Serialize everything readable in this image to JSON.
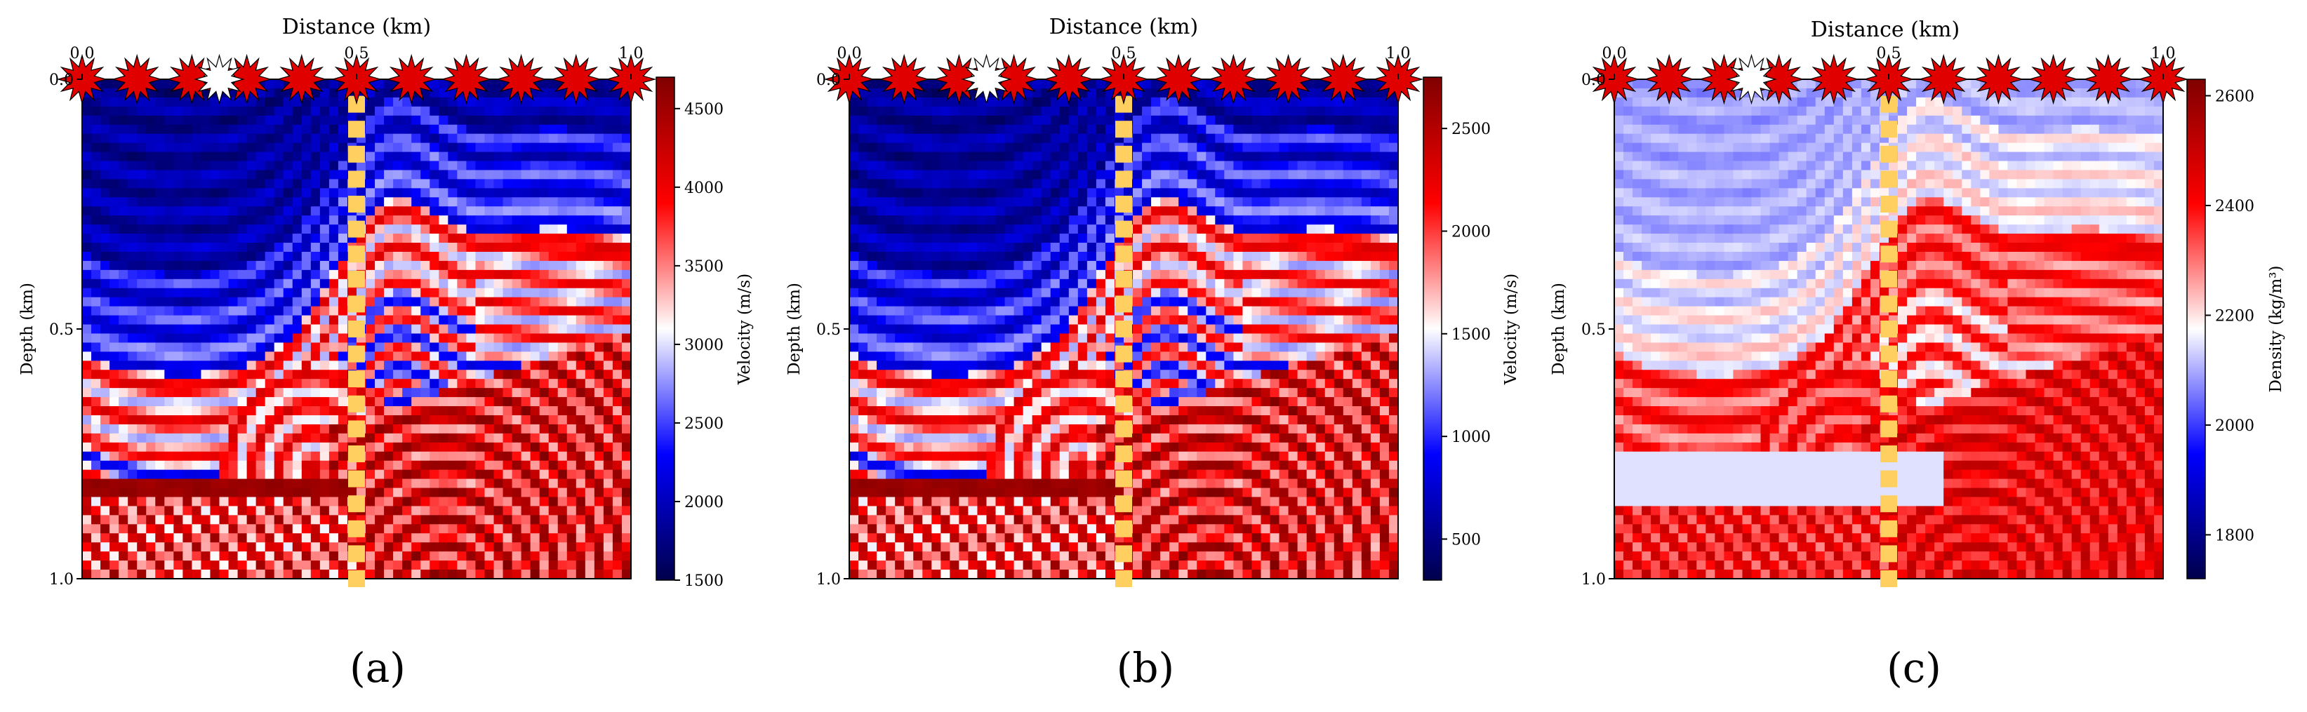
{
  "figure": {
    "panels": [
      {
        "id": "a",
        "caption": "(a)",
        "x_label": "Distance (km)",
        "y_label": "Depth (km)",
        "x_ticks": [
          "0.0",
          "0.5",
          "1.0"
        ],
        "y_ticks": [
          "0.0",
          "0.5",
          "1.0"
        ],
        "colorbar_label": "Velocity (m/s)",
        "colorbar_ticks": [
          "1500",
          "2000",
          "2500",
          "3000",
          "3500",
          "4000",
          "4500"
        ]
      },
      {
        "id": "b",
        "caption": "(b)",
        "x_label": "Distance (km)",
        "y_label": "Depth (km)",
        "x_ticks": [
          "0.0",
          "0.5",
          "1.0"
        ],
        "y_ticks": [
          "0.0",
          "0.5",
          "1.0"
        ],
        "colorbar_label": "Velocity (m/s)",
        "colorbar_ticks": [
          "500",
          "1000",
          "1500",
          "2000",
          "2500"
        ]
      },
      {
        "id": "c",
        "caption": "(c)",
        "x_label": "Distance (km)",
        "y_label": "Depth (km)",
        "x_ticks": [
          "0.0",
          "0.5",
          "1.0"
        ],
        "y_ticks": [
          "0.0",
          "0.5",
          "1.0"
        ],
        "colorbar_label": "Density (kg/m³)",
        "colorbar_ticks": [
          "1800",
          "2000",
          "2200",
          "2400",
          "2600"
        ]
      }
    ]
  },
  "chart_data": [
    {
      "type": "heatmap",
      "xlabel": "Distance (km)",
      "ylabel": "Depth (km)",
      "xlim": [
        0.0,
        1.0
      ],
      "ylim": [
        0.0,
        1.0
      ],
      "colormap": "seismic",
      "colorbar_label": "Velocity (m/s)",
      "colorbar_range": [
        1500,
        4700
      ],
      "colorbar_ticks": [
        1500,
        2000,
        2500,
        3000,
        3500,
        4000,
        4500
      ],
      "sources_x_km": [
        0.0,
        0.1,
        0.2,
        0.3,
        0.4,
        0.5,
        0.6,
        0.7,
        0.8,
        0.9,
        1.0
      ],
      "highlighted_source_x_km": 0.25,
      "receiver_line_x_km": 0.5,
      "source_color": "#e00000",
      "highlight_color": "#ffffff",
      "receiver_color": "#ffd060"
    },
    {
      "type": "heatmap",
      "xlabel": "Distance (km)",
      "ylabel": "Depth (km)",
      "xlim": [
        0.0,
        1.0
      ],
      "ylim": [
        0.0,
        1.0
      ],
      "colormap": "seismic",
      "colorbar_label": "Velocity (m/s)",
      "colorbar_range": [
        300,
        2750
      ],
      "colorbar_ticks": [
        500,
        1000,
        1500,
        2000,
        2500
      ],
      "sources_x_km": [
        0.0,
        0.1,
        0.2,
        0.3,
        0.4,
        0.5,
        0.6,
        0.7,
        0.8,
        0.9,
        1.0
      ],
      "highlighted_source_x_km": 0.25,
      "receiver_line_x_km": 0.5,
      "source_color": "#e00000",
      "highlight_color": "#ffffff",
      "receiver_color": "#ffd060"
    },
    {
      "type": "heatmap",
      "xlabel": "Distance (km)",
      "ylabel": "Depth (km)",
      "xlim": [
        0.0,
        1.0
      ],
      "ylim": [
        0.0,
        1.0
      ],
      "colormap": "seismic",
      "colorbar_label": "Density (kg/m³)",
      "colorbar_range": [
        1720,
        2630
      ],
      "colorbar_ticks": [
        1800,
        2000,
        2200,
        2400,
        2600
      ],
      "sources_x_km": [
        0.0,
        0.1,
        0.2,
        0.3,
        0.4,
        0.5,
        0.6,
        0.7,
        0.8,
        0.9,
        1.0
      ],
      "highlighted_source_x_km": 0.25,
      "receiver_line_x_km": 0.5,
      "source_color": "#e00000",
      "highlight_color": "#ffffff",
      "receiver_color": "#ffd060"
    }
  ]
}
